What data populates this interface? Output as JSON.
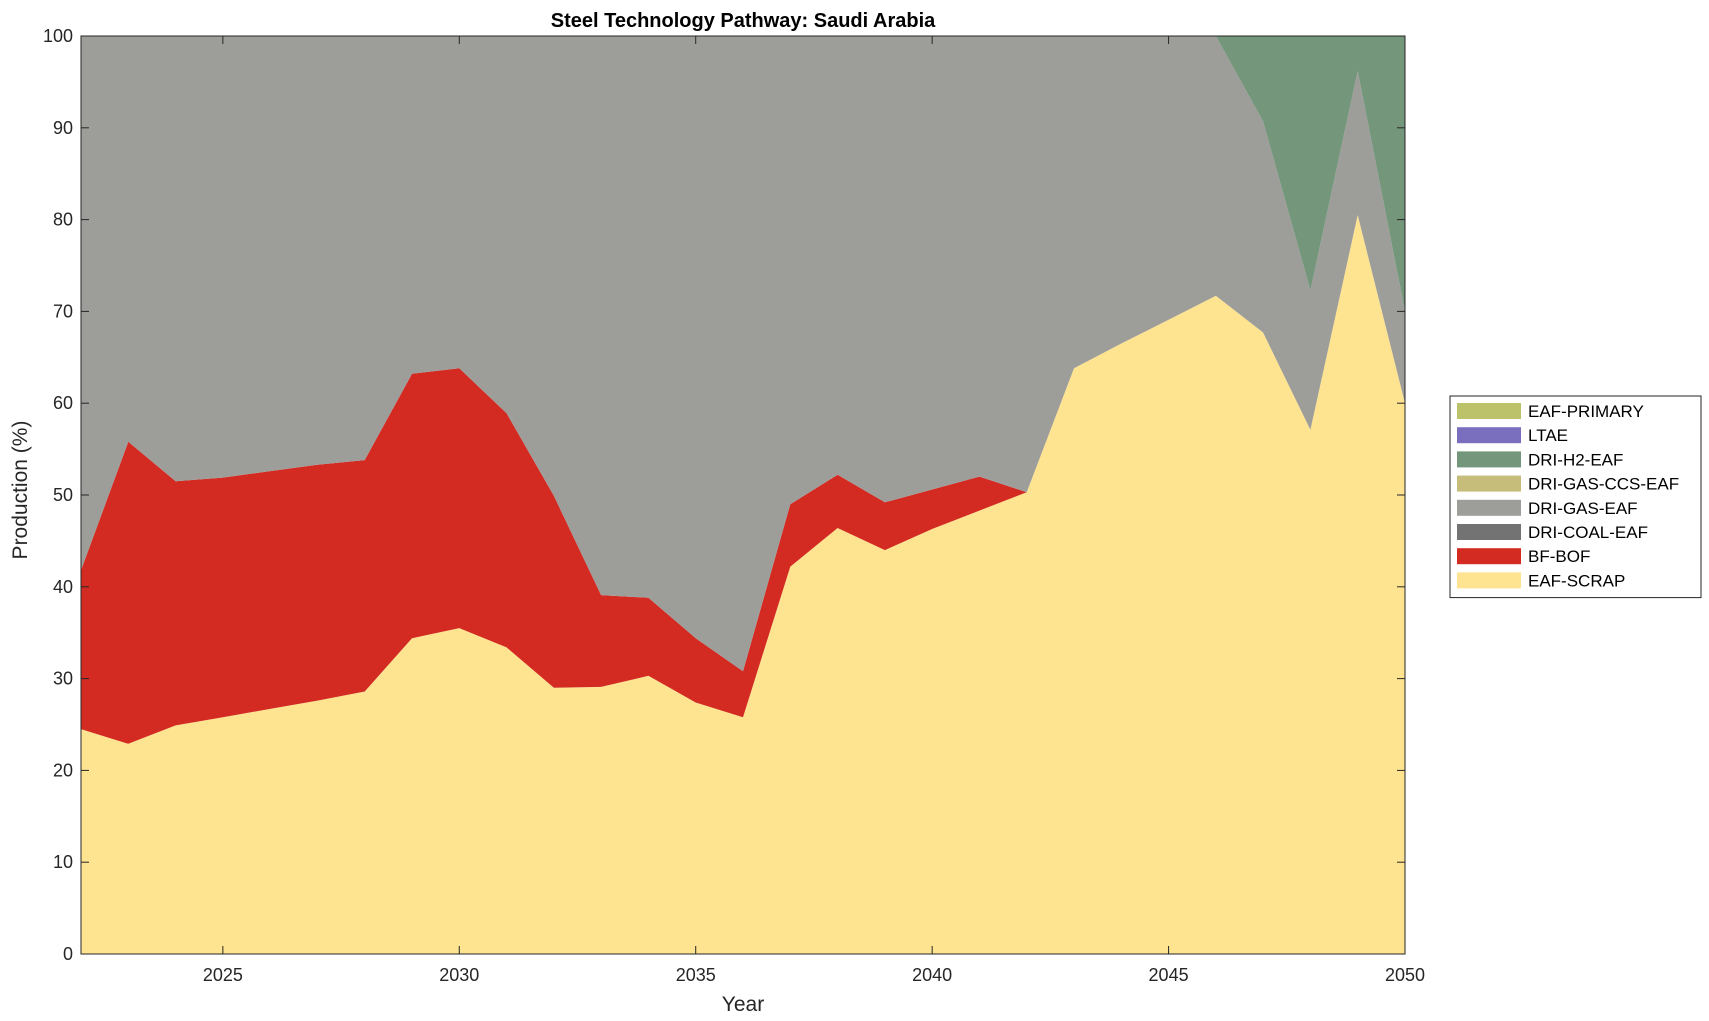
{
  "chart_data": {
    "type": "area",
    "stacked": true,
    "title": "Steel Technology Pathway: Saudi Arabia",
    "xlabel": "Year",
    "ylabel": "Production (%)",
    "xlim": [
      2022,
      2050
    ],
    "ylim": [
      0,
      100
    ],
    "xticks": [
      2025,
      2030,
      2035,
      2040,
      2045,
      2050
    ],
    "yticks": [
      0,
      10,
      20,
      30,
      40,
      50,
      60,
      70,
      80,
      90,
      100
    ],
    "grid": false,
    "legend_position": "right",
    "x": [
      2022,
      2023,
      2024,
      2025,
      2026,
      2027,
      2028,
      2029,
      2030,
      2031,
      2032,
      2033,
      2034,
      2035,
      2036,
      2037,
      2038,
      2039,
      2040,
      2041,
      2042,
      2043,
      2044,
      2045,
      2046,
      2047,
      2048,
      2049,
      2050
    ],
    "series": [
      {
        "name": "EAF-SCRAP",
        "color": "#fee391",
        "values": [
          24.5,
          22.9,
          24.9,
          25.8,
          26.7,
          27.6,
          28.6,
          34.4,
          35.5,
          33.4,
          29.0,
          29.1,
          30.3,
          27.4,
          25.8,
          42.2,
          46.4,
          44.0,
          46.3,
          48.3,
          50.3,
          63.8,
          66.5,
          69.1,
          71.7,
          67.7,
          57.1,
          80.5,
          60.0
        ]
      },
      {
        "name": "BF-BOF",
        "color": "#d32a22",
        "values": [
          17.3,
          32.9,
          26.6,
          26.1,
          25.9,
          25.7,
          25.2,
          28.8,
          28.3,
          25.5,
          20.9,
          10.0,
          8.5,
          7.0,
          5.0,
          6.8,
          5.8,
          5.2,
          4.3,
          3.7,
          0.0,
          0,
          0,
          0,
          0,
          0,
          0,
          0,
          0
        ]
      },
      {
        "name": "DRI-COAL-EAF",
        "color": "#737373",
        "values": [
          0,
          0,
          0,
          0,
          0,
          0,
          0,
          0,
          0,
          0,
          0,
          0,
          0,
          0,
          0,
          0,
          0,
          0,
          0,
          0,
          0,
          0,
          0,
          0,
          0,
          0,
          0,
          0,
          0
        ]
      },
      {
        "name": "DRI-GAS-EAF",
        "color": "#9d9d9a",
        "values": [
          58.2,
          44.2,
          48.5,
          48.1,
          47.4,
          46.7,
          46.2,
          36.8,
          36.2,
          41.1,
          50.1,
          60.9,
          61.2,
          65.6,
          69.2,
          51.0,
          47.8,
          50.8,
          49.4,
          48.0,
          49.7,
          36.2,
          33.5,
          30.9,
          28.3,
          23.0,
          15.2,
          15.7,
          10.0
        ]
      },
      {
        "name": "DRI-GAS-CCS-EAF",
        "color": "#c6bd7b",
        "values": [
          0,
          0,
          0,
          0,
          0,
          0,
          0,
          0,
          0,
          0,
          0,
          0,
          0,
          0,
          0,
          0,
          0,
          0,
          0,
          0,
          0,
          0,
          0,
          0,
          0,
          0,
          0,
          0,
          0
        ]
      },
      {
        "name": "DRI-H2-EAF",
        "color": "#74967b",
        "values": [
          0,
          0,
          0,
          0,
          0,
          0,
          0,
          0,
          0,
          0,
          0,
          0,
          0,
          0,
          0,
          0,
          0,
          0,
          0,
          0,
          0,
          0,
          0,
          0,
          0,
          9.3,
          27.7,
          3.8,
          30.0
        ]
      },
      {
        "name": "LTAE",
        "color": "#7a6fbf",
        "values": [
          0,
          0,
          0,
          0,
          0,
          0,
          0,
          0,
          0,
          0,
          0,
          0,
          0,
          0,
          0,
          0,
          0,
          0,
          0,
          0,
          0,
          0,
          0,
          0,
          0,
          0,
          0,
          0,
          0
        ]
      },
      {
        "name": "EAF-PRIMARY",
        "color": "#bcc26a",
        "values": [
          0,
          0,
          0,
          0,
          0,
          0,
          0,
          0,
          0,
          0,
          0,
          0,
          0,
          0,
          0,
          0,
          0,
          0,
          0,
          0,
          0,
          0,
          0,
          0,
          0,
          0,
          0,
          0,
          0
        ]
      }
    ],
    "legend_order": [
      "EAF-PRIMARY",
      "LTAE",
      "DRI-H2-EAF",
      "DRI-GAS-CCS-EAF",
      "DRI-GAS-EAF",
      "DRI-COAL-EAF",
      "BF-BOF",
      "EAF-SCRAP"
    ]
  }
}
